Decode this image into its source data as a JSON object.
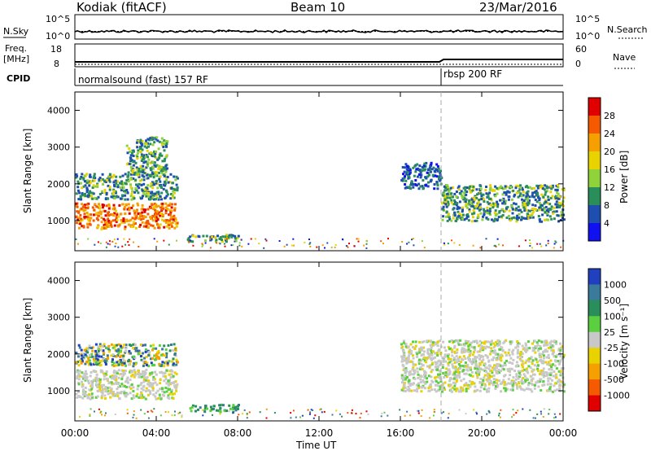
{
  "header": {
    "station": "Kodiak (fitACF)",
    "beam": "Beam 10",
    "date": "23/Mar/2016"
  },
  "top_panels": {
    "nsky_label": "N.Sky",
    "nsky_ticks": [
      "10^5",
      "10^0"
    ],
    "nsearch_label": "N.Search",
    "nsearch_ticks": [
      "10^5",
      "10^0"
    ],
    "freq_label": "Freq.",
    "freq_unit": "[MHz]",
    "freq_ticks": [
      "18",
      "8"
    ],
    "nave_label": "Nave",
    "nave_ticks": [
      "60",
      "0"
    ],
    "cpid_label": "CPID",
    "cpid_segments": [
      {
        "label": "normalsound (fast) 157 RF",
        "start_hour": 0
      },
      {
        "label": "rbsp 200 RF",
        "start_hour": 18
      }
    ]
  },
  "axes": {
    "ylabel": "Slant Range [km]",
    "yticks": [
      "1000",
      "2000",
      "3000",
      "4000"
    ],
    "xticks": [
      "00:00",
      "04:00",
      "08:00",
      "12:00",
      "16:00",
      "20:00",
      "00:00"
    ],
    "xlabel": "Time UT"
  },
  "colorbars": {
    "power": {
      "label": "Power [dB]",
      "ticks": [
        "28",
        "24",
        "20",
        "16",
        "12",
        "8",
        "4"
      ],
      "colors": [
        "#e00000",
        "#f55a00",
        "#f5a000",
        "#e8d200",
        "#8fd23a",
        "#2a8e5a",
        "#1e4fb0",
        "#1010f0"
      ]
    },
    "velocity": {
      "label": "Velocity [m s⁻¹]",
      "ticks": [
        "1000",
        "500",
        "100",
        "25",
        "-25",
        "-100",
        "-500",
        "-1000"
      ],
      "colors": [
        "#2040c0",
        "#3a7a9a",
        "#2a8e5a",
        "#5ad040",
        "#c8c8c8",
        "#e8d200",
        "#f5a000",
        "#f55a00",
        "#e00000"
      ]
    }
  },
  "chart_data": {
    "type": "heatmap",
    "x_range_hours": [
      0,
      24
    ],
    "y_range_km": [
      180,
      4500
    ],
    "mode_change_hour": 18,
    "power_regions": [
      {
        "t0": 0.0,
        "t1": 5.0,
        "r0": 800,
        "r1": 1500,
        "level": "high"
      },
      {
        "t0": 0.0,
        "t1": 5.0,
        "r0": 1600,
        "r1": 2300,
        "level": "mid"
      },
      {
        "t0": 2.5,
        "t1": 4.5,
        "r0": 2300,
        "r1": 3300,
        "level": "mid"
      },
      {
        "t0": 5.5,
        "t1": 8.0,
        "r0": 450,
        "r1": 650,
        "level": "mid"
      },
      {
        "t0": 16.0,
        "t1": 18.0,
        "r0": 1900,
        "r1": 2600,
        "level": "low"
      },
      {
        "t0": 18.0,
        "t1": 24.0,
        "r0": 1000,
        "r1": 2000,
        "level": "mid"
      }
    ],
    "velocity_regions": [
      {
        "t0": 0.0,
        "t1": 5.0,
        "r0": 800,
        "r1": 1600,
        "level": "near-zero"
      },
      {
        "t0": 0.0,
        "t1": 5.0,
        "r0": 1700,
        "r1": 2300,
        "level": "mixed"
      },
      {
        "t0": 5.5,
        "t1": 8.0,
        "r0": 450,
        "r1": 650,
        "level": "positive"
      },
      {
        "t0": 16.0,
        "t1": 24.0,
        "r0": 1000,
        "r1": 2400,
        "level": "near-zero"
      }
    ]
  }
}
